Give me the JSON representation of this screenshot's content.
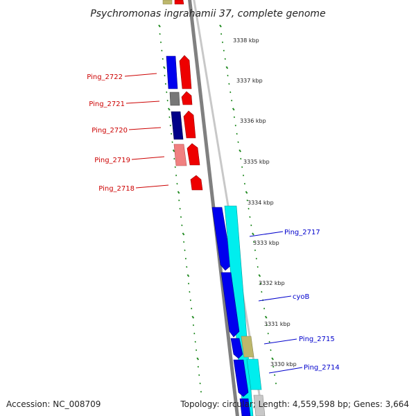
{
  "title": "Psychromonas ingrahamii 37, complete genome",
  "accession": "Accession: NC_008709",
  "summary": "Topology: circular; Length: 4,559,598 bp; Genes: 3,664",
  "colors": {
    "backbone": "#808080",
    "backbone_light": "#c8c8c8",
    "ticks": "#228b22",
    "label_red": "#cc0000",
    "label_blue": "#0000cc"
  },
  "kbp_marks": [
    {
      "label": "3338 kbp",
      "kbp": 3338
    },
    {
      "label": "3337 kbp",
      "kbp": 3337
    },
    {
      "label": "3336 kbp",
      "kbp": 3336
    },
    {
      "label": "3335 kbp",
      "kbp": 3335
    },
    {
      "label": "3334 kbp",
      "kbp": 3334
    },
    {
      "label": "3333 kbp",
      "kbp": 3333
    },
    {
      "label": "3332 kbp",
      "kbp": 3332
    },
    {
      "label": "3331 kbp",
      "kbp": 3331
    },
    {
      "label": "3330 kbp",
      "kbp": 3330
    }
  ],
  "gene_labels_left": [
    {
      "name": "Ping_2722"
    },
    {
      "name": "Ping_2721"
    },
    {
      "name": "Ping_2720"
    },
    {
      "name": "Ping_2719"
    },
    {
      "name": "Ping_2718"
    }
  ],
  "gene_labels_right": [
    {
      "name": "Ping_2717"
    },
    {
      "name": "cyoB"
    },
    {
      "name": "Ping_2715"
    },
    {
      "name": "Ping_2714"
    }
  ]
}
